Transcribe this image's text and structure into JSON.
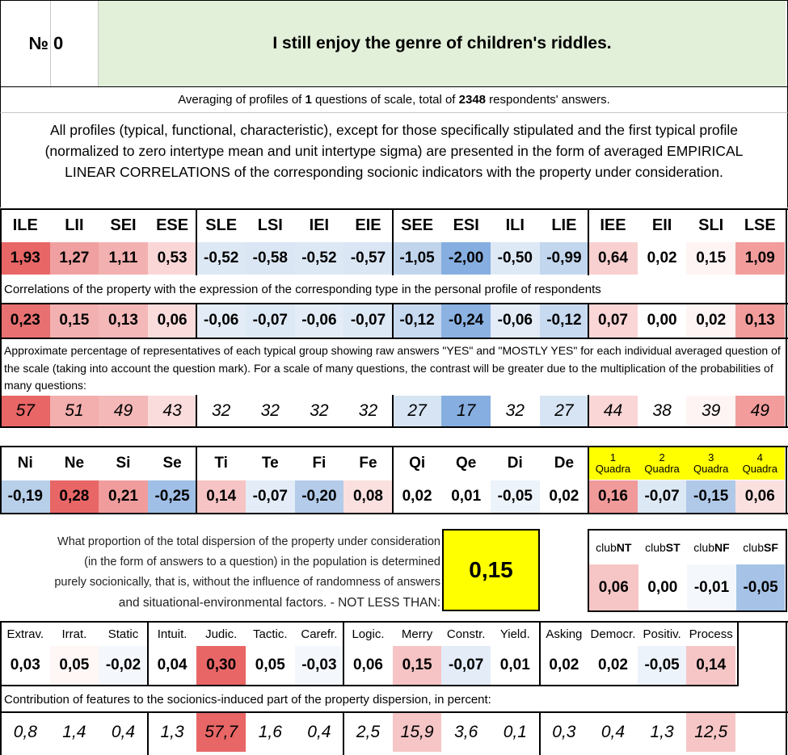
{
  "question": {
    "number_label": "№",
    "number": "0",
    "text": "I still enjoy the genre of children's riddles."
  },
  "summary": {
    "prefix": "Averaging of profiles of ",
    "questions": "1",
    "middle": " questions of scale, total of ",
    "respondents": "2348",
    "suffix": " respondents' answers."
  },
  "description": "All profiles (typical, functional, characteristic), except for those specifically stipulated and the first typical profile (normalized to zero intertype mean and unit intertype sigma) are presented in the form of averaged EMPIRICAL LINEAR CORRELATIONS of the corresponding socionic indicators with the property under consideration.",
  "types": {
    "labels": [
      "ILE",
      "LII",
      "SEI",
      "ESE",
      "SLE",
      "LSI",
      "IEI",
      "EIE",
      "SEE",
      "ESI",
      "ILI",
      "LIE",
      "IEE",
      "EII",
      "SLI",
      "LSE"
    ],
    "profile": [
      "1,93",
      "1,27",
      "1,11",
      "0,53",
      "-0,52",
      "-0,58",
      "-0,52",
      "-0,57",
      "-1,05",
      "-2,00",
      "-0,50",
      "-0,99",
      "0,64",
      "0,02",
      "0,15",
      "1,09"
    ],
    "profile_colors": [
      "#e86666",
      "#f0a0a0",
      "#f3b0b0",
      "#fad6d6",
      "#dde8f5",
      "#dae6f4",
      "#dde8f5",
      "#dae6f4",
      "#c0d4ec",
      "#86aee0",
      "#dee9f6",
      "#c2d6ee",
      "#f9d0d0",
      "#ffffff",
      "#fff4f4",
      "#f29c9c"
    ],
    "correlation_note": "Correlations of the property with the expression of the corresponding type in the personal profile of respondents",
    "correlations": [
      "0,23",
      "0,15",
      "0,13",
      "0,06",
      "-0,06",
      "-0,07",
      "-0,06",
      "-0,07",
      "-0,12",
      "-0,24",
      "-0,06",
      "-0,12",
      "0,07",
      "0,00",
      "0,02",
      "0,13"
    ],
    "correlation_colors": [
      "#e87070",
      "#f3b0b0",
      "#f4b8b8",
      "#fadcdc",
      "#e3ecf7",
      "#dee9f6",
      "#e3ecf7",
      "#dee9f6",
      "#c8daef",
      "#8cb2e2",
      "#e3ecf7",
      "#c8daef",
      "#fad6d6",
      "#ffffff",
      "#fff4f4",
      "#f29c9c"
    ],
    "percent_note": "Approximate percentage of representatives of each typical group showing raw answers \"YES\" and \"MOSTLY YES\" for each individual averaged question of the scale (taking into account the question mark). For a scale of many questions, the contrast will be greater due to the multiplication of the probabilities of many questions:",
    "percents": [
      "57",
      "51",
      "49",
      "43",
      "32",
      "32",
      "32",
      "32",
      "27",
      "17",
      "32",
      "27",
      "44",
      "38",
      "39",
      "49"
    ],
    "percent_colors": [
      "#e86666",
      "#f3aeae",
      "#f4b8b8",
      "#fbdcdc",
      "#ffffff",
      "#ffffff",
      "#ffffff",
      "#ffffff",
      "#d6e4f3",
      "#86aee0",
      "#ffffff",
      "#d6e4f3",
      "#fad6d6",
      "#ffffff",
      "#fff4f4",
      "#f29c9c"
    ]
  },
  "functions": {
    "labels": [
      "Ni",
      "Ne",
      "Si",
      "Se",
      "Ti",
      "Te",
      "Fi",
      "Fe",
      "Qi",
      "Qe",
      "Di",
      "De"
    ],
    "values": [
      "-0,19",
      "0,28",
      "0,21",
      "-0,25",
      "0,14",
      "-0,07",
      "-0,20",
      "0,08",
      "0,02",
      "0,01",
      "-0,05",
      "0,02"
    ],
    "colors": [
      "#b8cfea",
      "#e86666",
      "#f19c9c",
      "#9fbfe6",
      "#f6c4c4",
      "#e3ecf7",
      "#b4cce9",
      "#fbe0e0",
      "#ffffff",
      "#ffffff",
      "#edf3fa",
      "#ffffff"
    ]
  },
  "quadras": {
    "numbers": [
      "1",
      "2",
      "3",
      "4"
    ],
    "word": "Quadra",
    "values": [
      "0,16",
      "-0,07",
      "-0,15",
      "0,06"
    ],
    "colors": [
      "#f09a9a",
      "#dde8f5",
      "#b0c9e8",
      "#fbe0e0"
    ]
  },
  "dispersion": {
    "text_lines": [
      "What proportion of the total dispersion of the property under consideration",
      "(in the form of answers to a question) in the population is determined",
      "purely socionically, that is, without the influence of randomness of answers",
      "and situational-environmental factors. - NOT LESS THAN:"
    ],
    "value": "0,15",
    "highlight_color": "#ffff00"
  },
  "clubs": {
    "prefix": "club",
    "names": [
      "NT",
      "ST",
      "NF",
      "SF"
    ],
    "values": [
      "0,06",
      "0,00",
      "-0,01",
      "-0,05"
    ],
    "colors": [
      "#f6c6c6",
      "#ffffff",
      "#f4f8fc",
      "#a6c3e7"
    ]
  },
  "traits": {
    "labels": [
      "Extrav.",
      "Irrat.",
      "Static",
      "Intuit.",
      "Judic.",
      "Tactic.",
      "Carefr.",
      "Logic.",
      "Merry",
      "Constr.",
      "Yield.",
      "Asking",
      "Democr.",
      "Positiv.",
      "Process"
    ],
    "values": [
      "0,03",
      "0,05",
      "-0,02",
      "0,04",
      "0,30",
      "0,05",
      "-0,03",
      "0,06",
      "0,15",
      "-0,07",
      "0,01",
      "0,02",
      "0,02",
      "-0,05",
      "0,14"
    ],
    "colors": [
      "#ffffff",
      "#fff6f6",
      "#f4f8fc",
      "#ffffff",
      "#e86666",
      "#ffffff",
      "#f4f8fc",
      "#ffffff",
      "#f6c4c4",
      "#e3ecf7",
      "#ffffff",
      "#ffffff",
      "#ffffff",
      "#edf3fa",
      "#f6c6c6"
    ],
    "contribution_note": "Contribution of features to the sociоnics-induced part of the property dispersion, in percent:",
    "contributions": [
      "0,8",
      "1,4",
      "0,4",
      "1,3",
      "57,7",
      "1,6",
      "0,4",
      "2,5",
      "15,9",
      "3,6",
      "0,1",
      "0,3",
      "0,4",
      "1,3",
      "12,5"
    ],
    "contribution_colors": [
      "#ffffff",
      "#ffffff",
      "#ffffff",
      "#ffffff",
      "#e86666",
      "#ffffff",
      "#ffffff",
      "#ffffff",
      "#f6c6c6",
      "#ffffff",
      "#ffffff",
      "#ffffff",
      "#ffffff",
      "#ffffff",
      "#f6c6c6"
    ]
  }
}
